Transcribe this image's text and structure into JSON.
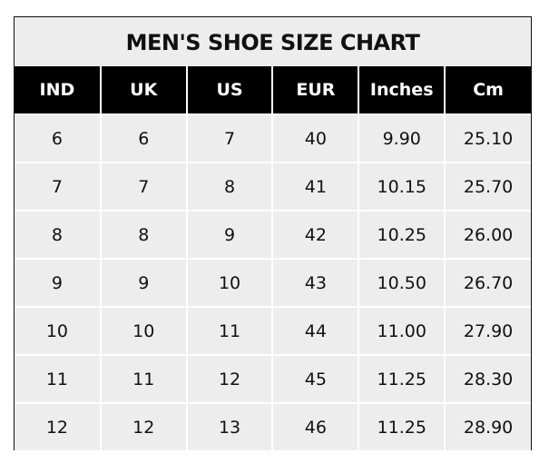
{
  "title": "MEN'S SHOE SIZE CHART",
  "columns": [
    "IND",
    "UK",
    "US",
    "EUR",
    "Inches",
    "Cm"
  ],
  "rows": [
    [
      "6",
      "6",
      "7",
      "40",
      "9.90",
      "25.10"
    ],
    [
      "7",
      "7",
      "8",
      "41",
      "10.15",
      "25.70"
    ],
    [
      "8",
      "8",
      "9",
      "42",
      "10.25",
      "26.00"
    ],
    [
      "9",
      "9",
      "10",
      "43",
      "10.50",
      "26.70"
    ],
    [
      "10",
      "10",
      "11",
      "44",
      "11.00",
      "27.90"
    ],
    [
      "11",
      "11",
      "12",
      "45",
      "11.25",
      "28.30"
    ],
    [
      "12",
      "12",
      "13",
      "46",
      "11.25",
      "28.90"
    ]
  ],
  "colors": {
    "header_bg": "#000000",
    "header_text": "#ffffff",
    "cell_bg": "#ededed"
  }
}
